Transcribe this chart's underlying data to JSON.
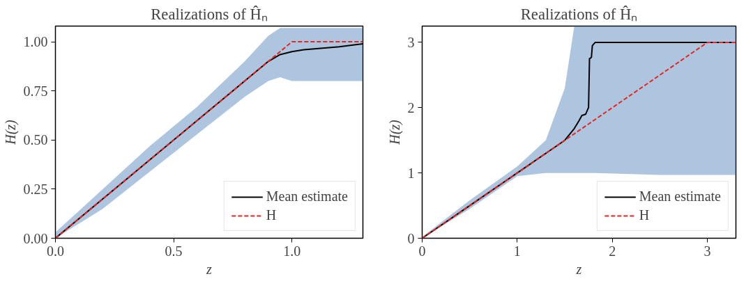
{
  "chart_data": [
    {
      "type": "line",
      "title": "Realizations of Ĥₙ",
      "xlabel": "z",
      "ylabel": "H(z)",
      "xlim": [
        0,
        1.3
      ],
      "ylim": [
        0,
        1.08
      ],
      "xticks": [
        {
          "value": 0,
          "label": "0.0"
        },
        {
          "value": 0.5,
          "label": "0.5"
        },
        {
          "value": 1,
          "label": "1.0"
        }
      ],
      "yticks": [
        {
          "value": 0,
          "label": "0.00"
        },
        {
          "value": 0.25,
          "label": "0.25"
        },
        {
          "value": 0.5,
          "label": "0.50"
        },
        {
          "value": 0.75,
          "label": "0.75"
        },
        {
          "value": 1,
          "label": "1.00"
        }
      ],
      "grid": false,
      "legend": "bottom right",
      "marker": "none",
      "series": [
        {
          "name": "Mean estimate",
          "color": "#000000",
          "line_style": "solid",
          "x": [
            0,
            0.2,
            0.4,
            0.6,
            0.8,
            0.9,
            0.95,
            1.0,
            1.05,
            1.2,
            1.3
          ],
          "values": [
            0,
            0.2,
            0.4,
            0.6,
            0.8,
            0.9,
            0.935,
            0.95,
            0.96,
            0.975,
            0.99
          ],
          "lower": [
            0,
            0.15,
            0.34,
            0.53,
            0.72,
            0.8,
            0.82,
            0.8,
            0.8,
            0.8,
            0.8
          ],
          "upper": [
            0.03,
            0.25,
            0.47,
            0.67,
            0.9,
            1.03,
            1.07,
            1.07,
            1.07,
            1.07,
            1.07
          ]
        },
        {
          "name": "H",
          "color": "#e8251f",
          "line_style": "dashed",
          "x": [
            0,
            1,
            1.3
          ],
          "values": [
            0,
            1,
            1
          ]
        }
      ]
    },
    {
      "type": "line",
      "title": "Realizations of Ĥₙ",
      "xlabel": "z",
      "ylabel": "H(z)",
      "xlim": [
        0,
        3.3
      ],
      "ylim": [
        0,
        3.25
      ],
      "xticks": [
        0,
        1,
        2,
        3
      ],
      "yticks": [
        0,
        1,
        2,
        3
      ],
      "grid": false,
      "legend": "bottom right",
      "marker": "none",
      "series": [
        {
          "name": "Mean estimate",
          "color": "#000000",
          "line_style": "solid",
          "x": [
            0,
            0.5,
            1,
            1.3,
            1.5,
            1.6,
            1.65,
            1.68,
            1.72,
            1.74,
            1.75,
            1.76,
            1.78,
            1.79,
            1.82,
            2.5,
            3.3
          ],
          "values": [
            0,
            0.5,
            1,
            1.3,
            1.5,
            1.68,
            1.8,
            1.88,
            1.9,
            1.97,
            2.0,
            2.75,
            2.77,
            2.95,
            3.0,
            3.0,
            3.0
          ],
          "lower": [
            0,
            0.45,
            0.95,
            1.0,
            1.0,
            1.0,
            1.0,
            1.0,
            1.0,
            1.0,
            1.0,
            1.0,
            1.0,
            1.0,
            1.0,
            0.97,
            0.97
          ],
          "upper": [
            0.02,
            0.58,
            1.1,
            1.5,
            2.3,
            3.25,
            3.25,
            3.25,
            3.25,
            3.25,
            3.25,
            3.25,
            3.25,
            3.25,
            3.25,
            3.25,
            3.25
          ]
        },
        {
          "name": "H",
          "color": "#e8251f",
          "line_style": "dashed",
          "x": [
            0,
            3,
            3.3
          ],
          "values": [
            0,
            3,
            3
          ]
        }
      ]
    }
  ]
}
